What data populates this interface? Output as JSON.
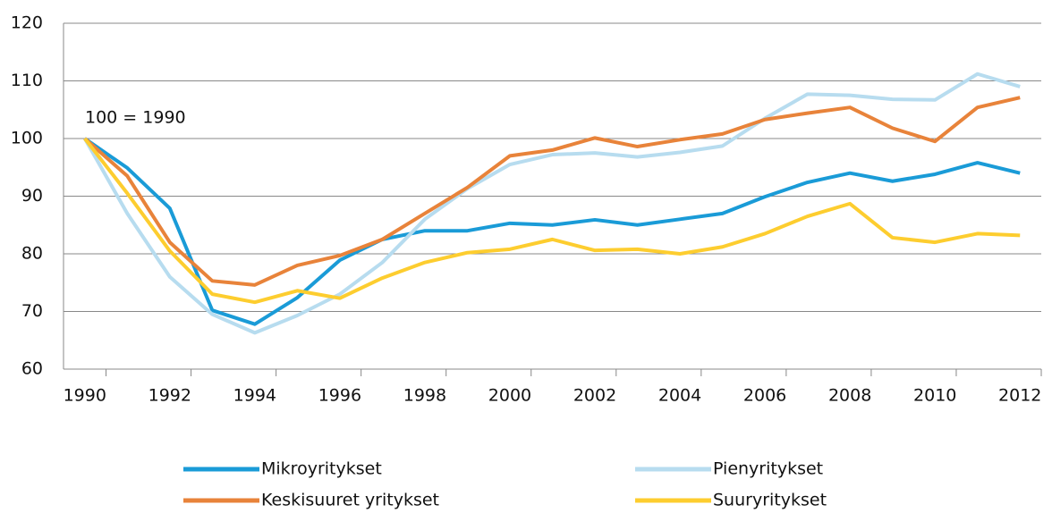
{
  "chart_data": {
    "type": "line",
    "annotation": "100 = 1990",
    "categories": [
      "1990",
      null,
      "1992",
      null,
      "1994",
      null,
      "1996",
      null,
      "1998",
      null,
      "2000",
      null,
      "2002",
      null,
      "2004",
      null,
      "2006",
      null,
      "2008",
      null,
      "2010",
      null,
      "2012"
    ],
    "series": [
      {
        "name": "Mikroyritykset",
        "color": "#1a9bd7",
        "values": [
          100,
          94.9,
          87.9,
          70.2,
          67.8,
          72.4,
          78.9,
          82.5,
          84,
          84,
          85.3,
          85,
          85.9,
          85,
          86,
          87,
          89.9,
          92.4,
          94,
          92.6,
          93.8,
          95.8,
          94
        ]
      },
      {
        "name": "Pienyritykset",
        "color": "#b7dcef",
        "values": [
          100,
          87,
          76,
          69.5,
          66.3,
          69.3,
          73,
          78.5,
          86,
          91.3,
          95.5,
          97.2,
          97.5,
          96.8,
          97.6,
          98.7,
          103.5,
          107.7,
          107.5,
          106.8,
          106.7,
          111.2,
          109
        ]
      },
      {
        "name": "Keskisuuret yritykset",
        "color": "#e8833a",
        "values": [
          100,
          93.5,
          82,
          75.3,
          74.6,
          78,
          79.7,
          82.5,
          87,
          91.5,
          97,
          98,
          100.1,
          98.6,
          99.8,
          100.8,
          103.3,
          104.4,
          105.4,
          101.8,
          99.5,
          105.4,
          107.1
        ]
      },
      {
        "name": "Suuryritykset",
        "color": "#fdcd2f",
        "values": [
          100,
          90.5,
          80.5,
          73,
          71.6,
          73.6,
          72.3,
          75.8,
          78.5,
          80.2,
          80.8,
          82.5,
          80.6,
          80.8,
          80,
          81.2,
          83.5,
          86.5,
          88.7,
          82.8,
          82,
          83.5,
          83.2
        ]
      }
    ],
    "ylim": [
      60,
      120
    ],
    "yticks": [
      60,
      70,
      80,
      90,
      100,
      110,
      120
    ],
    "grid": true
  }
}
